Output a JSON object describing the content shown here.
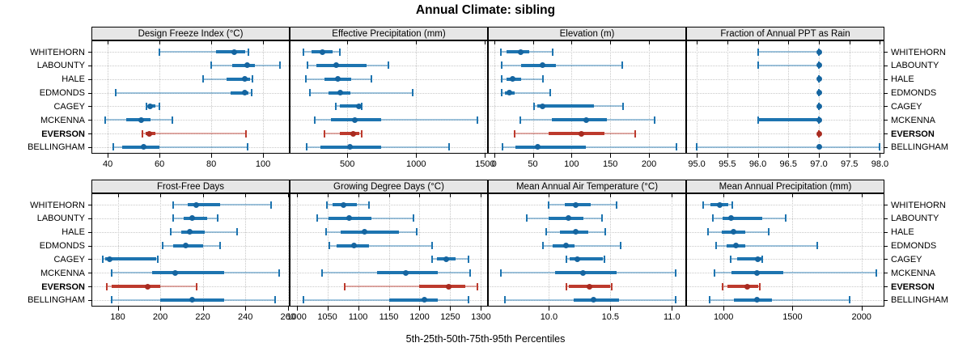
{
  "main": {
    "title": "Annual Climate: sibling",
    "caption": "5th-25th-50th-75th-95th Percentiles"
  },
  "locations": [
    "WHITEHORN",
    "LABOUNTY",
    "HALE",
    "EDMONDS",
    "CAGEY",
    "MCKENNA",
    "EVERSON",
    "BELLINGHAM"
  ],
  "highlight": "EVERSON",
  "colors": {
    "blue": "#1d74b0",
    "blue_dot": "#1565a0",
    "blue_light": "rgba(29,116,176,0.42)",
    "red": "#bd3a2d",
    "red_dot": "#a82b20",
    "red_light": "rgba(189,58,45,0.42)",
    "grid": "#c8c8c8",
    "strip_bg": "#e6e6e6",
    "border": "#000000"
  },
  "chart_data": {
    "type": "dotplot-percentiles",
    "percentiles_shown": [
      5,
      25,
      50,
      75,
      95
    ],
    "legend_note": "thin line = 5th-95th, thick line = 25th-75th, dot = median",
    "panels": [
      {
        "title": "Design Freeze Index (°C)",
        "domain": [
          34,
          110
        ],
        "ticks": [
          40,
          60,
          80,
          100
        ],
        "tick_labels": [
          "40",
          "60",
          "80",
          "100"
        ],
        "series": {
          "WHITEHORN": [
            60,
            82,
            89,
            93,
            94.5
          ],
          "LABOUNTY": [
            80,
            88,
            94,
            97,
            106.5
          ],
          "HALE": [
            77,
            86,
            93,
            95,
            96
          ],
          "EDMONDS": [
            43,
            87.5,
            93,
            94.5,
            95.5
          ],
          "CAGEY": [
            55,
            55.5,
            56.5,
            58.5,
            60
          ],
          "MCKENNA": [
            39,
            47,
            53,
            56.5,
            65
          ],
          "EVERSON": [
            53.5,
            54.5,
            56,
            58.5,
            93.5
          ],
          "BELLINGHAM": [
            42,
            45.5,
            54,
            60,
            94
          ]
        }
      },
      {
        "title": "Effective Precipitation (mm)",
        "domain": [
          88,
          1515
        ],
        "ticks": [
          500,
          1000,
          1500
        ],
        "tick_labels": [
          "500",
          "1000",
          "1500"
        ],
        "series": {
          "WHITEHORN": [
            182,
            238,
            322,
            394,
            449
          ],
          "LABOUNTY": [
            212,
            276,
            418,
            639,
            800
          ],
          "HALE": [
            198,
            335,
            433,
            530,
            678
          ],
          "EDMONDS": [
            228,
            365,
            449,
            522,
            972
          ],
          "CAGEY": [
            414,
            445,
            584,
            596,
            605
          ],
          "MCKENNA": [
            263,
            384,
            555,
            747,
            1443
          ],
          "EVERSON": [
            335,
            445,
            541,
            585,
            604
          ],
          "BELLINGHAM": [
            208,
            306,
            522,
            747,
            1237
          ]
        }
      },
      {
        "title": "Elevation (m)",
        "domain": [
          -7,
          247
        ],
        "ticks": [
          0,
          50,
          100,
          150,
          200
        ],
        "tick_labels": [
          "0",
          "50",
          "100",
          "150",
          "200"
        ],
        "series": {
          "WHITEHORN": [
            9,
            16,
            34,
            45,
            76
          ],
          "LABOUNTY": [
            10,
            35,
            62,
            80,
            165
          ],
          "HALE": [
            10,
            16,
            24,
            35,
            63
          ],
          "EDMONDS": [
            10,
            14,
            20,
            26,
            72
          ],
          "CAGEY": [
            52,
            56,
            63,
            129,
            166
          ],
          "MCKENNA": [
            34,
            75,
            119,
            146,
            207
          ],
          "EVERSON": [
            26,
            70,
            113,
            143,
            182
          ],
          "BELLINGHAM": [
            11,
            28,
            56,
            118,
            235
          ]
        }
      },
      {
        "title": "Fraction of Annual PPT as Rain",
        "domain": [
          94.84,
          98.06
        ],
        "ticks": [
          95.0,
          95.5,
          96.0,
          96.5,
          97.0,
          97.5,
          98.0
        ],
        "tick_labels": [
          "95.0",
          "95.5",
          "96.0",
          "96.5",
          "97.0",
          "97.5",
          "98.0"
        ],
        "series": {
          "WHITEHORN": [
            96,
            97,
            97,
            97,
            97
          ],
          "LABOUNTY": [
            96,
            97,
            97,
            97,
            97
          ],
          "HALE": [
            97,
            97,
            97,
            97,
            97
          ],
          "EDMONDS": [
            97,
            97,
            97,
            97,
            97
          ],
          "CAGEY": [
            97,
            97,
            97,
            97,
            97
          ],
          "MCKENNA": [
            96,
            96,
            97,
            97,
            97
          ],
          "EVERSON": [
            97,
            97,
            97,
            97,
            97
          ],
          "BELLINGHAM": [
            95,
            97,
            97,
            97,
            98
          ]
        }
      },
      {
        "title": "Frost-Free Days",
        "domain": [
          168,
          260.5
        ],
        "ticks": [
          180,
          200,
          220,
          240,
          260
        ],
        "tick_labels": [
          "180",
          "200",
          "220",
          "240",
          "260"
        ],
        "series": {
          "WHITEHORN": [
            206,
            213,
            217,
            228,
            252
          ],
          "LABOUNTY": [
            206,
            211,
            215,
            222,
            227
          ],
          "HALE": [
            205,
            210,
            214,
            221,
            236
          ],
          "EDMONDS": [
            201,
            206,
            212,
            220,
            228
          ],
          "CAGEY": [
            173,
            174,
            176,
            198,
            199
          ],
          "MCKENNA": [
            177,
            196,
            207,
            230,
            256
          ],
          "EVERSON": [
            175,
            177,
            194,
            200,
            217
          ],
          "BELLINGHAM": [
            177,
            200,
            215,
            230,
            254
          ]
        }
      },
      {
        "title": "Growing Degree Days (°C)",
        "domain": [
          990,
          1310
        ],
        "ticks": [
          1000,
          1050,
          1100,
          1150,
          1200,
          1250,
          1300
        ],
        "tick_labels": [
          "1000",
          "1050",
          "1100",
          "1150",
          "1200",
          "1250",
          "1300"
        ],
        "series": {
          "WHITEHORN": [
            1049,
            1059,
            1076,
            1098,
            1118
          ],
          "LABOUNTY": [
            1033,
            1052,
            1086,
            1122,
            1190
          ],
          "HALE": [
            1048,
            1072,
            1111,
            1166,
            1196
          ],
          "EDMONDS": [
            1053,
            1065,
            1094,
            1118,
            1221
          ],
          "CAGEY": [
            1220,
            1229,
            1244,
            1259,
            1280
          ],
          "MCKENNA": [
            1041,
            1131,
            1178,
            1230,
            1282
          ],
          "EVERSON": [
            1078,
            1199,
            1247,
            1274,
            1294
          ],
          "BELLINGHAM": [
            1011,
            1150,
            1208,
            1230,
            1280
          ]
        }
      },
      {
        "title": "Mean Annual Air Temperature (°C)",
        "domain": [
          9.51,
          11.11
        ],
        "ticks": [
          10.0,
          10.5,
          11.0
        ],
        "tick_labels": [
          "10.0",
          "10.5",
          "11.0"
        ],
        "series": {
          "WHITEHORN": [
            10.0,
            10.13,
            10.22,
            10.34,
            10.55
          ],
          "LABOUNTY": [
            9.82,
            10.0,
            10.16,
            10.28,
            10.43
          ],
          "HALE": [
            9.98,
            10.09,
            10.22,
            10.32,
            10.46
          ],
          "EDMONDS": [
            9.95,
            10.03,
            10.14,
            10.21,
            10.58
          ],
          "CAGEY": [
            10.14,
            10.17,
            10.23,
            10.44,
            10.45
          ],
          "MCKENNA": [
            9.61,
            10.05,
            10.28,
            10.55,
            11.03
          ],
          "EVERSON": [
            10.14,
            10.16,
            10.33,
            10.5,
            10.51
          ],
          "BELLINGHAM": [
            9.64,
            10.2,
            10.36,
            10.57,
            11.03
          ]
        }
      },
      {
        "title": "Mean Annual Precipitation (mm)",
        "domain": [
          735,
          2160
        ],
        "ticks": [
          1000,
          1500,
          2000
        ],
        "tick_labels": [
          "1000",
          "1500",
          "2000"
        ],
        "series": {
          "WHITEHORN": [
            850,
            905,
            970,
            1035,
            1065
          ],
          "LABOUNTY": [
            925,
            995,
            1055,
            1280,
            1450
          ],
          "HALE": [
            890,
            985,
            1070,
            1160,
            1325
          ],
          "EDMONDS": [
            945,
            1025,
            1090,
            1160,
            1680
          ],
          "CAGEY": [
            1053,
            1100,
            1251,
            1272,
            1281
          ],
          "MCKENNA": [
            937,
            1059,
            1245,
            1431,
            2107
          ],
          "EVERSON": [
            994,
            1029,
            1170,
            1250,
            1261
          ],
          "BELLINGHAM": [
            902,
            1075,
            1241,
            1353,
            1911
          ]
        }
      }
    ]
  }
}
